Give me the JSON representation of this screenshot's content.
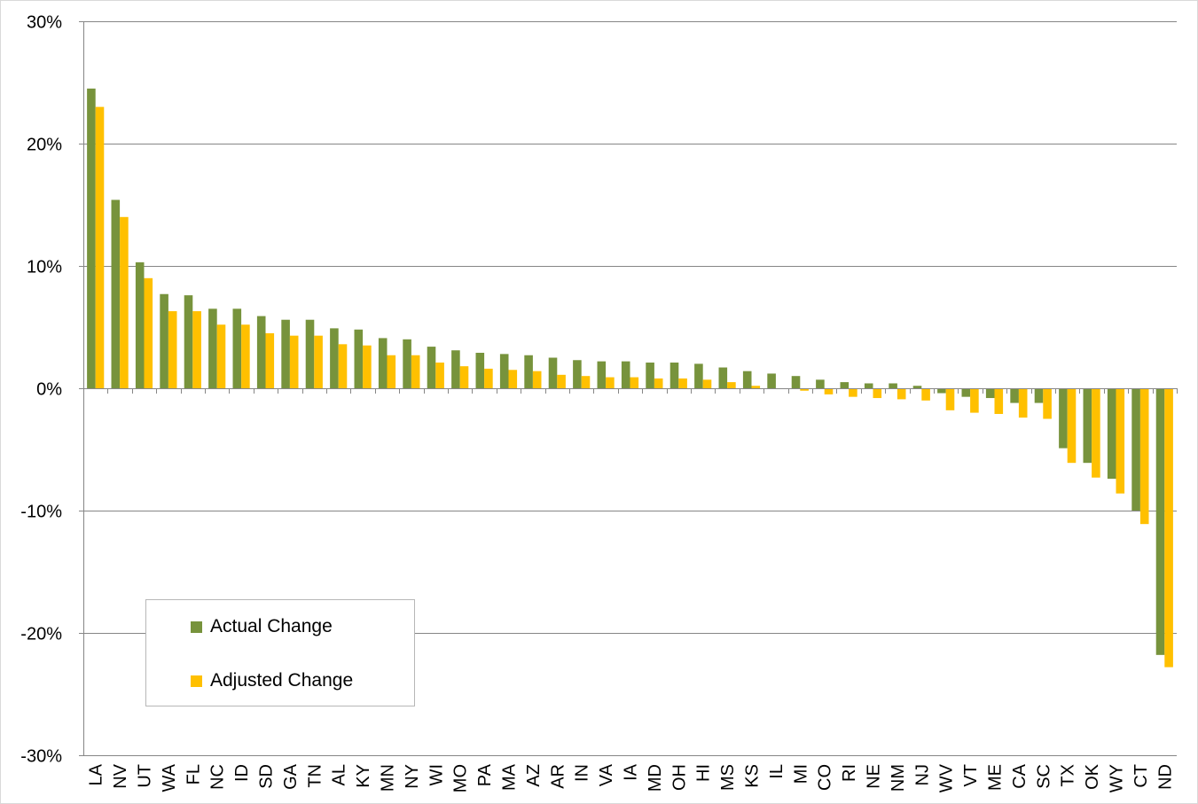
{
  "chart_data": {
    "type": "bar",
    "title": "",
    "xlabel": "",
    "ylabel": "",
    "ylim": [
      -30,
      30
    ],
    "yticks": [
      -30,
      -20,
      -10,
      0,
      10,
      20,
      30
    ],
    "ytick_labels": [
      "-30%",
      "-20%",
      "-10%",
      "0%",
      "10%",
      "20%",
      "30%"
    ],
    "grid": true,
    "legend_position": "bottom-left",
    "categories": [
      "LA",
      "NV",
      "UT",
      "WA",
      "FL",
      "NC",
      "ID",
      "SD",
      "GA",
      "TN",
      "AL",
      "KY",
      "MN",
      "NY",
      "WI",
      "MO",
      "PA",
      "MA",
      "AZ",
      "AR",
      "IN",
      "VA",
      "IA",
      "MD",
      "OH",
      "HI",
      "MS",
      "KS",
      "IL",
      "MI",
      "CO",
      "RI",
      "NE",
      "NM",
      "NJ",
      "WV",
      "VT",
      "ME",
      "CA",
      "SC",
      "TX",
      "OK",
      "WY",
      "CT",
      "ND"
    ],
    "series": [
      {
        "name": "Actual Change",
        "color": "#77933c",
        "values": [
          24.5,
          15.4,
          10.3,
          7.7,
          7.6,
          6.5,
          6.5,
          5.9,
          5.6,
          5.6,
          4.9,
          4.8,
          4.1,
          4.0,
          3.4,
          3.1,
          2.9,
          2.8,
          2.7,
          2.5,
          2.3,
          2.2,
          2.2,
          2.1,
          2.1,
          2.0,
          1.7,
          1.4,
          1.2,
          1.0,
          0.7,
          0.5,
          0.4,
          0.4,
          0.2,
          -0.4,
          -0.7,
          -0.8,
          -1.2,
          -1.2,
          -4.9,
          -6.1,
          -7.4,
          -10.0,
          -21.8
        ]
      },
      {
        "name": "Adjusted Change",
        "color": "#ffc000",
        "values": [
          23.0,
          14.0,
          9.0,
          6.3,
          6.3,
          5.2,
          5.2,
          4.5,
          4.3,
          4.3,
          3.6,
          3.5,
          2.7,
          2.7,
          2.1,
          1.8,
          1.6,
          1.5,
          1.4,
          1.1,
          1.0,
          0.9,
          0.9,
          0.8,
          0.8,
          0.7,
          0.5,
          0.2,
          0.0,
          -0.2,
          -0.5,
          -0.7,
          -0.8,
          -0.9,
          -1.0,
          -1.8,
          -2.0,
          -2.1,
          -2.4,
          -2.5,
          -6.1,
          -7.3,
          -8.6,
          -11.1,
          -22.8
        ]
      }
    ]
  }
}
